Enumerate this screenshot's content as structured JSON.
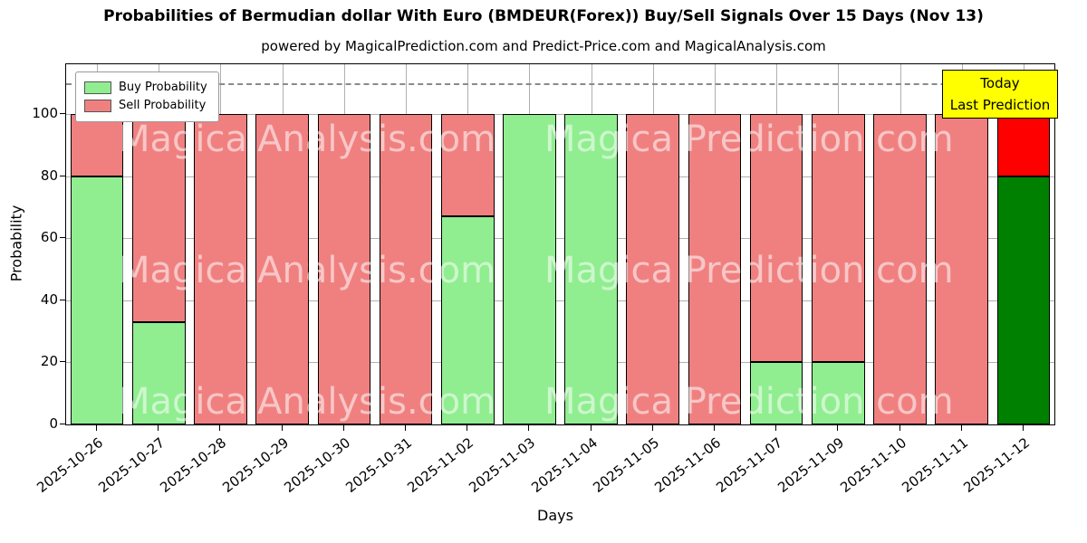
{
  "title": "Probabilities of Bermudian dollar With Euro (BMDEUR(Forex)) Buy/Sell Signals Over 15 Days (Nov 13)",
  "subtitle": "powered by MagicalPrediction.com and Predict-Price.com and MagicalAnalysis.com",
  "legend": {
    "buy_label": "Buy Probability",
    "sell_label": "Sell Probability"
  },
  "annotation": {
    "line1": "Today",
    "line2": "Last Prediction",
    "bg_color": "#ffff00"
  },
  "watermarks": {
    "left_text": "MagicalAnalysis.com",
    "right_text": "Magica Prediction.com"
  },
  "colors": {
    "buy": "#90ee90",
    "sell": "#f08080",
    "today_buy": "#008000",
    "today_sell": "#ff0000",
    "grid": "#b0b0b0"
  },
  "chart_data": {
    "type": "bar",
    "stacked": true,
    "title": "Probabilities of Bermudian dollar With Euro (BMDEUR(Forex)) Buy/Sell Signals Over 15 Days (Nov 13)",
    "xlabel": "Days",
    "ylabel": "Probability",
    "ylim": [
      0,
      116
    ],
    "yticks": [
      0,
      20,
      40,
      60,
      80,
      100
    ],
    "dashed_line_y": 110,
    "grid": true,
    "legend_position": "upper left",
    "categories": [
      "2025-10-26",
      "2025-10-27",
      "2025-10-28",
      "2025-10-29",
      "2025-10-30",
      "2025-10-31",
      "2025-11-02",
      "2025-11-03",
      "2025-11-04",
      "2025-11-05",
      "2025-11-06",
      "2025-11-07",
      "2025-11-09",
      "2025-11-10",
      "2025-11-11",
      "2025-11-12"
    ],
    "series": [
      {
        "name": "Buy Probability",
        "color": "#90ee90",
        "values": [
          80,
          33,
          0,
          0,
          0,
          0,
          67,
          100,
          100,
          0,
          0,
          20,
          20,
          0,
          0,
          80
        ]
      },
      {
        "name": "Sell Probability",
        "color": "#f08080",
        "values": [
          20,
          67,
          100,
          100,
          100,
          100,
          33,
          0,
          0,
          100,
          100,
          80,
          80,
          100,
          100,
          20
        ]
      }
    ],
    "today_index": 15,
    "today_colors": {
      "buy": "#008000",
      "sell": "#ff0000"
    }
  }
}
